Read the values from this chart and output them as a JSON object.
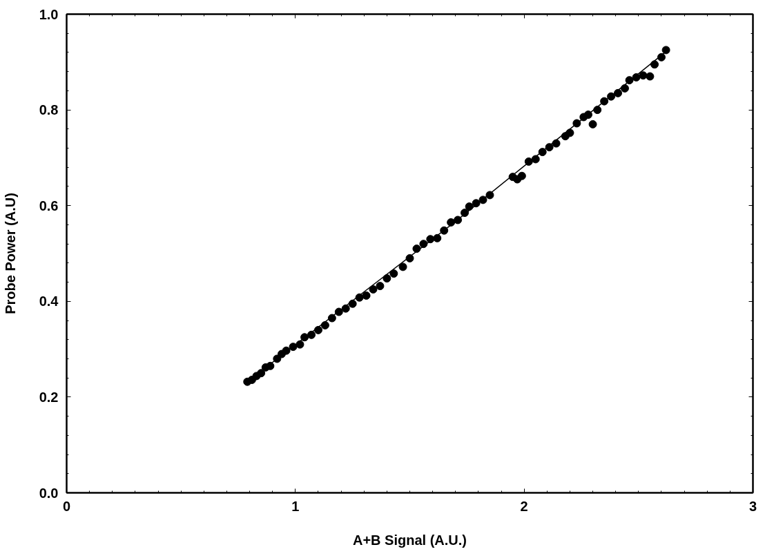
{
  "chart_data": {
    "type": "scatter",
    "xlabel": "A+B Signal (A.U.)",
    "ylabel": "Probe Power (A.U)",
    "xlim": [
      0,
      3
    ],
    "ylim": [
      0,
      1
    ],
    "xticks": [
      0,
      1,
      2,
      3
    ],
    "yticks": [
      {
        "value": 0,
        "label": "0.0"
      },
      {
        "value": 0.2,
        "label": "0.2"
      },
      {
        "value": 0.4,
        "label": "0.4"
      },
      {
        "value": 0.6,
        "label": "0.6"
      },
      {
        "value": 0.8,
        "label": "0.8"
      },
      {
        "value": 1,
        "label": "1.0"
      }
    ],
    "series": [
      {
        "marker": "circle",
        "color": "#000000",
        "x": [
          0.79,
          0.81,
          0.83,
          0.85,
          0.87,
          0.89,
          0.92,
          0.94,
          0.96,
          0.99,
          1.02,
          1.04,
          1.07,
          1.1,
          1.13,
          1.16,
          1.19,
          1.22,
          1.25,
          1.28,
          1.31,
          1.34,
          1.37,
          1.4,
          1.43,
          1.47,
          1.5,
          1.53,
          1.56,
          1.59,
          1.62,
          1.65,
          1.68,
          1.71,
          1.74,
          1.76,
          1.79,
          1.82,
          1.85,
          1.95,
          1.97,
          1.99,
          2.02,
          2.05,
          2.08,
          2.11,
          2.14,
          2.18,
          2.2,
          2.23,
          2.26,
          2.28,
          2.3,
          2.32,
          2.35,
          2.38,
          2.41,
          2.44,
          2.46,
          2.49,
          2.52,
          2.55,
          2.57,
          2.6,
          2.62
        ],
        "values": [
          0.232,
          0.236,
          0.244,
          0.25,
          0.262,
          0.265,
          0.28,
          0.29,
          0.297,
          0.305,
          0.31,
          0.325,
          0.33,
          0.34,
          0.35,
          0.365,
          0.378,
          0.385,
          0.395,
          0.408,
          0.412,
          0.425,
          0.432,
          0.448,
          0.458,
          0.472,
          0.49,
          0.51,
          0.52,
          0.53,
          0.532,
          0.548,
          0.565,
          0.57,
          0.585,
          0.598,
          0.605,
          0.612,
          0.622,
          0.66,
          0.655,
          0.662,
          0.692,
          0.697,
          0.712,
          0.722,
          0.73,
          0.745,
          0.752,
          0.772,
          0.785,
          0.79,
          0.77,
          0.8,
          0.818,
          0.828,
          0.835,
          0.845,
          0.862,
          0.868,
          0.872,
          0.87,
          0.895,
          0.91,
          0.925
        ]
      },
      {
        "type": "line",
        "marker": "none",
        "color": "#000000",
        "x": [
          0.79,
          1.7,
          2.62
        ],
        "values": [
          0.232,
          0.567,
          0.922
        ]
      }
    ]
  }
}
